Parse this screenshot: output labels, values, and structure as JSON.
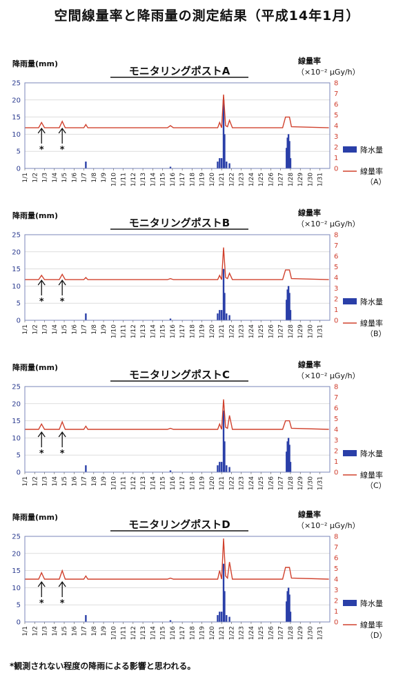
{
  "page_title": "空間線量率と降雨量の測定結果（平成14年1月）",
  "footnote": "*観測されない程度の降雨による影響と思われる。",
  "colors": {
    "rain": "#2a3fa8",
    "dose": "#d0402c",
    "frame": "#7a86b8",
    "grid": "#c9c9c9"
  },
  "arrow_note": "*",
  "chart_data": [
    {
      "type": "bar+line",
      "title": "モニタリングポストA",
      "left_axis_label": "降雨量(mm)",
      "right_axis_label": "線量率",
      "right_axis_unit": "（×10⁻² μGy/h）",
      "legend": {
        "rain": "降水量",
        "dose": "線量率",
        "dose_sub": "（A）"
      },
      "yleft_ticks": [
        0,
        5,
        10,
        15,
        20,
        25
      ],
      "yleft_lim": [
        0,
        25
      ],
      "yright_ticks": [
        0,
        1,
        2,
        3,
        4,
        5,
        6,
        7,
        8
      ],
      "yright_lim": [
        0,
        8
      ],
      "x_ticks": [
        "1/1",
        "1/2",
        "1/3",
        "1/4",
        "1/5",
        "1/6",
        "1/7",
        "1/8",
        "1/9",
        "1/10",
        "1/11",
        "1/12",
        "1/13",
        "1/14",
        "1/15",
        "1/16",
        "1/17",
        "1/18",
        "1/19",
        "1/20",
        "1/21",
        "1/22",
        "1/23",
        "1/24",
        "1/25",
        "1/26",
        "1/27",
        "1/28",
        "1/29",
        "1/30",
        "1/31"
      ],
      "rain_bars": [
        [
          7.2,
          2
        ],
        [
          15.8,
          0.5
        ],
        [
          20.6,
          2
        ],
        [
          20.8,
          3
        ],
        [
          21.0,
          3
        ],
        [
          21.2,
          20
        ],
        [
          21.3,
          10
        ],
        [
          21.5,
          2
        ],
        [
          21.8,
          1.5
        ],
        [
          27.6,
          6
        ],
        [
          27.7,
          9
        ],
        [
          27.8,
          10
        ],
        [
          27.9,
          8
        ],
        [
          28.0,
          3
        ]
      ],
      "dose_points": [
        [
          1,
          3.8
        ],
        [
          2.4,
          3.8
        ],
        [
          2.7,
          4.3
        ],
        [
          3.0,
          3.8
        ],
        [
          4.5,
          3.8
        ],
        [
          4.8,
          4.4
        ],
        [
          5.1,
          3.8
        ],
        [
          7.0,
          3.8
        ],
        [
          7.2,
          4.1
        ],
        [
          7.4,
          3.8
        ],
        [
          15.5,
          3.8
        ],
        [
          15.8,
          4.0
        ],
        [
          16.1,
          3.8
        ],
        [
          20.6,
          3.8
        ],
        [
          20.8,
          4.3
        ],
        [
          21.0,
          3.8
        ],
        [
          21.2,
          6.9
        ],
        [
          21.4,
          4.0
        ],
        [
          21.6,
          3.9
        ],
        [
          21.8,
          4.5
        ],
        [
          22.1,
          3.8
        ],
        [
          27.2,
          3.8
        ],
        [
          27.5,
          4.8
        ],
        [
          27.9,
          4.8
        ],
        [
          28.1,
          3.9
        ],
        [
          31.9,
          3.8
        ]
      ],
      "arrows_at": [
        2.7,
        4.8
      ]
    },
    {
      "type": "bar+line",
      "title": "モニタリングポストB",
      "left_axis_label": "降雨量(mm)",
      "right_axis_label": "線量率",
      "right_axis_unit": "（×10⁻² μGy/h）",
      "legend": {
        "rain": "降水量",
        "dose": "線量率",
        "dose_sub": "（B）"
      },
      "yleft_ticks": [
        0,
        5,
        10,
        15,
        20,
        25
      ],
      "yleft_lim": [
        0,
        25
      ],
      "yright_ticks": [
        0,
        1,
        2,
        3,
        4,
        5,
        6,
        7,
        8
      ],
      "yright_lim": [
        0,
        8
      ],
      "x_ticks": [
        "1/1",
        "1/2",
        "1/3",
        "1/4",
        "1/5",
        "1/6",
        "1/7",
        "1/8",
        "1/9",
        "1/10",
        "1/11",
        "1/12",
        "1/13",
        "1/14",
        "1/15",
        "1/16",
        "1/17",
        "1/18",
        "1/19",
        "1/20",
        "1/21",
        "1/22",
        "1/23",
        "1/24",
        "1/25",
        "1/26",
        "1/27",
        "1/28",
        "1/29",
        "1/30",
        "1/31"
      ],
      "rain_bars": [
        [
          7.2,
          2
        ],
        [
          15.8,
          0.5
        ],
        [
          20.6,
          2
        ],
        [
          20.8,
          3
        ],
        [
          21.0,
          3
        ],
        [
          21.2,
          15
        ],
        [
          21.3,
          8
        ],
        [
          21.5,
          2
        ],
        [
          21.8,
          1.5
        ],
        [
          27.6,
          6
        ],
        [
          27.7,
          9
        ],
        [
          27.8,
          10
        ],
        [
          27.9,
          8
        ],
        [
          28.0,
          3
        ]
      ],
      "dose_points": [
        [
          1,
          3.8
        ],
        [
          2.4,
          3.8
        ],
        [
          2.7,
          4.2
        ],
        [
          3.0,
          3.8
        ],
        [
          4.5,
          3.8
        ],
        [
          4.8,
          4.3
        ],
        [
          5.1,
          3.8
        ],
        [
          7.0,
          3.8
        ],
        [
          7.2,
          4.0
        ],
        [
          7.4,
          3.8
        ],
        [
          15.5,
          3.8
        ],
        [
          15.8,
          3.9
        ],
        [
          16.1,
          3.8
        ],
        [
          20.6,
          3.8
        ],
        [
          20.8,
          4.2
        ],
        [
          21.0,
          3.8
        ],
        [
          21.2,
          6.8
        ],
        [
          21.4,
          4.0
        ],
        [
          21.6,
          3.9
        ],
        [
          21.8,
          4.4
        ],
        [
          22.1,
          3.8
        ],
        [
          27.2,
          3.8
        ],
        [
          27.5,
          4.7
        ],
        [
          27.9,
          4.7
        ],
        [
          28.1,
          3.9
        ],
        [
          31.9,
          3.8
        ]
      ],
      "arrows_at": [
        2.7,
        4.8
      ]
    },
    {
      "type": "bar+line",
      "title": "モニタリングポストC",
      "left_axis_label": "降雨量(mm)",
      "right_axis_label": "線量率",
      "right_axis_unit": "（×10⁻² μGy/h）",
      "legend": {
        "rain": "降水量",
        "dose": "線量率",
        "dose_sub": "（C）"
      },
      "yleft_ticks": [
        0,
        5,
        10,
        15,
        20,
        25
      ],
      "yleft_lim": [
        0,
        25
      ],
      "yright_ticks": [
        0,
        1,
        2,
        3,
        4,
        5,
        6,
        7,
        8
      ],
      "yright_lim": [
        0,
        8
      ],
      "x_ticks": [
        "1/1",
        "1/2",
        "1/3",
        "1/4",
        "1/5",
        "1/6",
        "1/7",
        "1/8",
        "1/9",
        "1/10",
        "1/11",
        "1/12",
        "1/13",
        "1/14",
        "1/15",
        "1/16",
        "1/17",
        "1/18",
        "1/19",
        "1/20",
        "1/21",
        "1/22",
        "1/23",
        "1/24",
        "1/25",
        "1/26",
        "1/27",
        "1/28",
        "1/29",
        "1/30",
        "1/31"
      ],
      "rain_bars": [
        [
          7.2,
          2
        ],
        [
          15.8,
          0.5
        ],
        [
          20.6,
          2
        ],
        [
          20.8,
          3
        ],
        [
          21.0,
          3
        ],
        [
          21.2,
          18
        ],
        [
          21.3,
          9
        ],
        [
          21.5,
          2
        ],
        [
          21.8,
          1.5
        ],
        [
          27.6,
          6
        ],
        [
          27.7,
          9
        ],
        [
          27.8,
          10
        ],
        [
          27.9,
          8
        ],
        [
          28.0,
          3
        ]
      ],
      "dose_points": [
        [
          1,
          4.0
        ],
        [
          2.4,
          4.0
        ],
        [
          2.7,
          4.5
        ],
        [
          3.0,
          4.0
        ],
        [
          4.5,
          4.0
        ],
        [
          4.8,
          4.7
        ],
        [
          5.1,
          4.0
        ],
        [
          7.0,
          4.0
        ],
        [
          7.2,
          4.3
        ],
        [
          7.4,
          4.0
        ],
        [
          15.5,
          4.0
        ],
        [
          15.8,
          4.1
        ],
        [
          16.1,
          4.0
        ],
        [
          20.6,
          4.0
        ],
        [
          20.8,
          4.5
        ],
        [
          21.0,
          4.0
        ],
        [
          21.2,
          6.8
        ],
        [
          21.4,
          4.2
        ],
        [
          21.6,
          4.1
        ],
        [
          21.8,
          5.3
        ],
        [
          22.1,
          4.0
        ],
        [
          27.2,
          4.0
        ],
        [
          27.5,
          4.8
        ],
        [
          27.9,
          4.8
        ],
        [
          28.1,
          4.1
        ],
        [
          31.9,
          4.0
        ]
      ],
      "arrows_at": [
        2.7,
        4.8
      ]
    },
    {
      "type": "bar+line",
      "title": "モニタリングポストD",
      "left_axis_label": "降雨量(mm)",
      "right_axis_label": "線量率",
      "right_axis_unit": "（×10⁻² μGy/h）",
      "legend": {
        "rain": "降水量",
        "dose": "線量率",
        "dose_sub": "（D）"
      },
      "yleft_ticks": [
        0,
        5,
        10,
        15,
        20,
        25
      ],
      "yleft_lim": [
        0,
        25
      ],
      "yright_ticks": [
        0,
        1,
        2,
        3,
        4,
        5,
        6,
        7,
        8
      ],
      "yright_lim": [
        0,
        8
      ],
      "x_ticks": [
        "1/1",
        "1/2",
        "1/3",
        "1/4",
        "1/5",
        "1/6",
        "1/7",
        "1/8",
        "1/9",
        "1/10",
        "1/11",
        "1/12",
        "1/13",
        "1/14",
        "1/15",
        "1/16",
        "1/17",
        "1/18",
        "1/19",
        "1/20",
        "1/21",
        "1/22",
        "1/23",
        "1/24",
        "1/25",
        "1/26",
        "1/27",
        "1/28",
        "1/29",
        "1/30",
        "1/31"
      ],
      "rain_bars": [
        [
          7.2,
          2
        ],
        [
          15.8,
          0.5
        ],
        [
          20.6,
          2
        ],
        [
          20.8,
          3
        ],
        [
          21.0,
          3
        ],
        [
          21.2,
          17
        ],
        [
          21.3,
          9
        ],
        [
          21.5,
          2
        ],
        [
          21.8,
          1.5
        ],
        [
          27.6,
          6
        ],
        [
          27.7,
          9
        ],
        [
          27.8,
          10
        ],
        [
          27.9,
          8
        ],
        [
          28.0,
          3
        ]
      ],
      "dose_points": [
        [
          1,
          4.0
        ],
        [
          2.4,
          4.0
        ],
        [
          2.7,
          4.6
        ],
        [
          3.0,
          4.0
        ],
        [
          4.5,
          4.0
        ],
        [
          4.8,
          4.8
        ],
        [
          5.1,
          4.0
        ],
        [
          7.0,
          4.0
        ],
        [
          7.2,
          4.3
        ],
        [
          7.4,
          4.0
        ],
        [
          15.5,
          4.0
        ],
        [
          15.8,
          4.1
        ],
        [
          16.1,
          4.0
        ],
        [
          20.6,
          4.0
        ],
        [
          20.8,
          4.8
        ],
        [
          21.0,
          4.0
        ],
        [
          21.2,
          7.8
        ],
        [
          21.4,
          4.3
        ],
        [
          21.6,
          4.1
        ],
        [
          21.8,
          5.6
        ],
        [
          22.1,
          4.0
        ],
        [
          27.2,
          4.0
        ],
        [
          27.5,
          5.1
        ],
        [
          27.9,
          5.1
        ],
        [
          28.1,
          4.1
        ],
        [
          31.9,
          4.0
        ]
      ],
      "arrows_at": [
        2.7,
        4.8
      ]
    }
  ]
}
